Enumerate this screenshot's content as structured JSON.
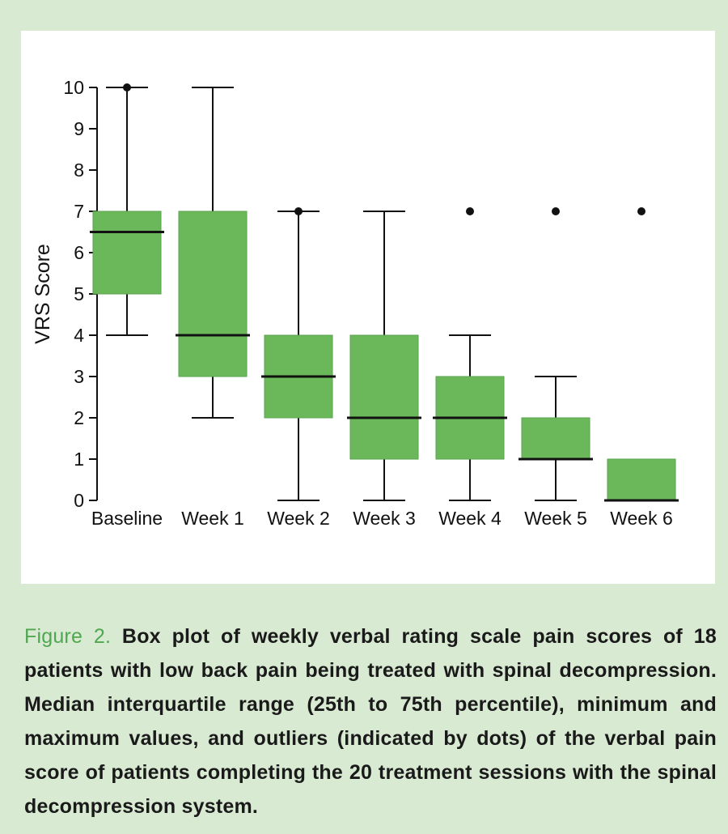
{
  "chart_data": {
    "type": "boxplot",
    "ylabel": "VRS Score",
    "ylim": [
      0,
      10
    ],
    "yticks": [
      "0",
      "1",
      "2",
      "3",
      "4",
      "5",
      "6",
      "7",
      "8",
      "9",
      "10"
    ],
    "categories": [
      "Baseline",
      "Week 1",
      "Week 2",
      "Week 3",
      "Week 4",
      "Week 5",
      "Week 6"
    ],
    "boxes": [
      {
        "min": 4,
        "q1": 5,
        "median": 6.5,
        "q3": 7,
        "max": 10,
        "outliers": [
          10
        ]
      },
      {
        "min": 2,
        "q1": 3,
        "median": 4,
        "q3": 7,
        "max": 10,
        "outliers": []
      },
      {
        "min": 0,
        "q1": 2,
        "median": 3,
        "q3": 4,
        "max": 7,
        "outliers": [
          7
        ]
      },
      {
        "min": 0,
        "q1": 1,
        "median": 2,
        "q3": 4,
        "max": 7,
        "outliers": []
      },
      {
        "min": 0,
        "q1": 1,
        "median": 2,
        "q3": 3,
        "max": 4,
        "outliers": [
          7
        ]
      },
      {
        "min": 0,
        "q1": 1,
        "median": 1,
        "q3": 2,
        "max": 3,
        "outliers": [
          7
        ]
      },
      {
        "min": 0,
        "q1": 0,
        "median": 0,
        "q3": 1,
        "max": 1,
        "outliers": [
          7
        ]
      }
    ],
    "colors": {
      "box": "#6ab85a",
      "line": "#111111"
    },
    "grid": false
  },
  "caption": {
    "lead": "Figure 2.",
    "text": " Box plot of weekly verbal rating scale pain scores of 18 patients with low back pain being treated with spinal decompression. Median interquartile range (25th to 75th percentile), minimum and maximum values, and outliers (indicated by dots) of the verbal pain score of patients completing the 20 treatment sessions with the spinal decompression system."
  }
}
